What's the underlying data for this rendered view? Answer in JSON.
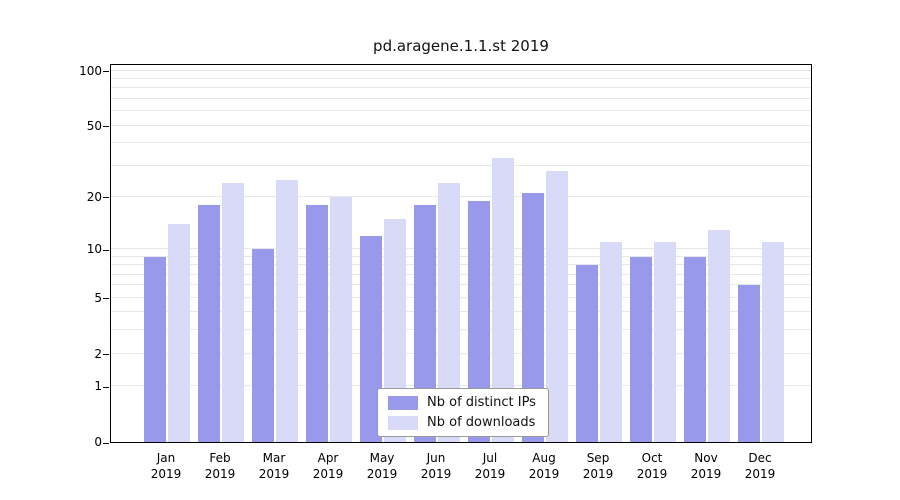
{
  "figure": {
    "title": "pd.aragene.1.1.st 2019"
  },
  "chart_data": {
    "type": "bar",
    "title": "pd.aragene.1.1.st 2019",
    "categories": [
      "Jan 2019",
      "Feb 2019",
      "Mar 2019",
      "Apr 2019",
      "May 2019",
      "Jun 2019",
      "Jul 2019",
      "Aug 2019",
      "Sep 2019",
      "Oct 2019",
      "Nov 2019",
      "Dec 2019"
    ],
    "series": [
      {
        "name": "Nb of distinct IPs",
        "color": "#9999ec",
        "values": [
          9,
          18,
          10,
          18,
          12,
          18,
          19,
          21,
          8,
          9,
          9,
          6
        ]
      },
      {
        "name": "Nb of downloads",
        "color": "#d9d9f8",
        "values": [
          14,
          24,
          25,
          20,
          15,
          24,
          33,
          28,
          11,
          11,
          13,
          11
        ]
      }
    ],
    "yscale": "log1p",
    "ylim": [
      0,
      110
    ],
    "y_ticks": [
      0,
      1,
      2,
      5,
      10,
      20,
      50,
      100
    ],
    "y_minor_gridlines": [
      1,
      2,
      3,
      4,
      5,
      6,
      7,
      8,
      9,
      10,
      20,
      30,
      40,
      50,
      60,
      70,
      80,
      90,
      100
    ],
    "grid": true,
    "legend": {
      "position": "bottom-center",
      "items": [
        "Nb of distinct IPs",
        "Nb of downloads"
      ]
    }
  }
}
